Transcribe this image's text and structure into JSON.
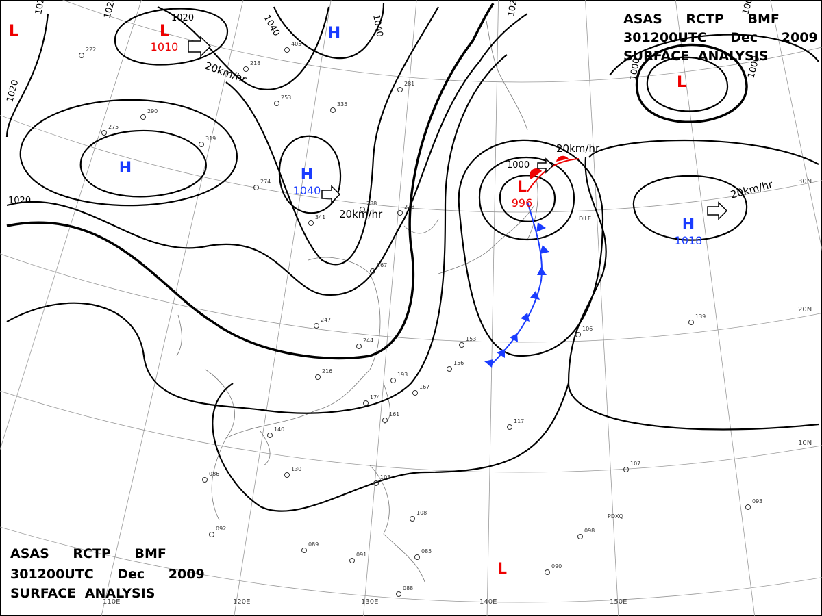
{
  "header": {
    "line1": "ASAS RCTP BMF",
    "line2": "301200UTC Dec 2009",
    "line3": "SURFACE ANALYSIS"
  },
  "pressure_centers": [
    {
      "type": "L",
      "value": "1010"
    },
    {
      "type": "H"
    },
    {
      "type": "L"
    },
    {
      "type": "H",
      "value": "1040"
    },
    {
      "type": "H"
    },
    {
      "type": "L",
      "value": "996"
    },
    {
      "type": "H",
      "value": "1018"
    },
    {
      "type": "L"
    },
    {
      "type": "L"
    }
  ],
  "isobar_labels": [
    "1020",
    "1020",
    "1020",
    "1040",
    "1040",
    "1020",
    "1020",
    "1000",
    "1000",
    "1000",
    "1000",
    "1020"
  ],
  "wind_labels": [
    "20km/hr",
    "20km/hr",
    "20km/hr",
    "20km/hr"
  ],
  "longitude_labels": [
    "110E",
    "120E",
    "130E",
    "140E",
    "150E"
  ],
  "latitude_labels": [
    "30N",
    "20N",
    "10N"
  ],
  "station_ids": [
    "PDXQ",
    "DILE"
  ],
  "station_values": [
    "222",
    "218",
    "405",
    "281",
    "335",
    "253",
    "290",
    "319",
    "275",
    "274",
    "341",
    "288",
    "278",
    "267",
    "247",
    "244",
    "216",
    "193",
    "174",
    "161",
    "140",
    "130",
    "092",
    "086",
    "089",
    "091",
    "085",
    "088",
    "108",
    "103",
    "117",
    "106",
    "139",
    "107",
    "098",
    "090",
    "093",
    "153",
    "156",
    "167"
  ]
}
